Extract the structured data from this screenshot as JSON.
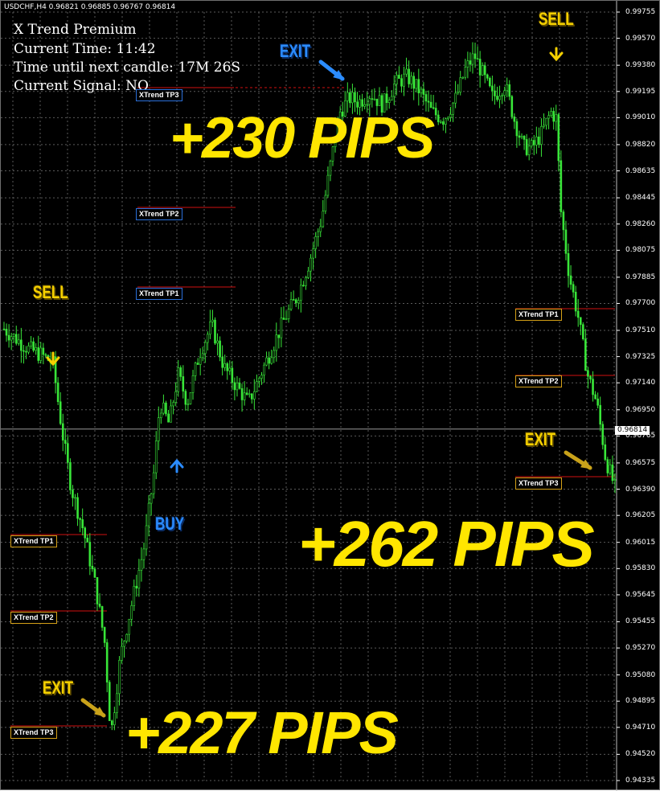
{
  "header": {
    "symbol_line": "USDCHF,H4  0.96821 0.96885 0.96767 0.96814"
  },
  "indicator_panel": {
    "title": "X Trend Premium",
    "current_time": "Current Time: 11:42",
    "next_candle": "Time until next candle: 17M 26S",
    "current_signal": "Current Signal:   NO"
  },
  "current_price_tag": "0.96814",
  "colors": {
    "background": "#000000",
    "grid": "#5a5a5a",
    "candles": "#39e639",
    "tp_line": "#d01010",
    "gold": "#f5d000",
    "blue": "#2b8cff"
  },
  "annotations": {
    "signals": [
      {
        "id": "sell-1",
        "label": "SELL",
        "color": "gold",
        "arrow": "down"
      },
      {
        "id": "buy-1",
        "label": "BUY",
        "color": "blue",
        "arrow": "up"
      },
      {
        "id": "exit-top",
        "label": "EXIT",
        "color": "blue",
        "arrow": "diagonal"
      },
      {
        "id": "sell-2",
        "label": "SELL",
        "color": "gold",
        "arrow": "down"
      },
      {
        "id": "exit-bottom-left",
        "label": "EXIT",
        "color": "gold",
        "arrow": "diagonal"
      },
      {
        "id": "exit-bottom-right",
        "label": "EXIT",
        "color": "gold",
        "arrow": "diagonal"
      }
    ],
    "take_profit_labels": [
      {
        "id": "tp3-top",
        "label": "XTrend TP3",
        "style": "blue"
      },
      {
        "id": "tp2-top",
        "label": "XTrend TP2",
        "style": "blue"
      },
      {
        "id": "tp1-top",
        "label": "XTrend TP1",
        "style": "blue"
      },
      {
        "id": "tp1-right",
        "label": "XTrend TP1",
        "style": "gold"
      },
      {
        "id": "tp2-right",
        "label": "XTrend TP2",
        "style": "gold"
      },
      {
        "id": "tp3-right",
        "label": "XTrend TP3",
        "style": "gold"
      },
      {
        "id": "tp1-left",
        "label": "XTrend TP1",
        "style": "gold"
      },
      {
        "id": "tp2-left",
        "label": "XTrend TP2",
        "style": "gold"
      },
      {
        "id": "tp3-left",
        "label": "XTrend TP3",
        "style": "gold"
      }
    ],
    "pips": [
      {
        "id": "pips-230",
        "label": "+230 PIPS"
      },
      {
        "id": "pips-262",
        "label": "+262 PIPS"
      },
      {
        "id": "pips-227",
        "label": "+227 PIPS"
      }
    ]
  },
  "chart_data": {
    "type": "candlestick",
    "symbol": "USDCHF",
    "timeframe": "H4",
    "ylim": [
      0.94335,
      0.99755
    ],
    "y_ticks": [
      "0.99755",
      "0.99570",
      "0.99380",
      "0.99195",
      "0.99010",
      "0.98820",
      "0.98635",
      "0.98445",
      "0.98260",
      "0.98075",
      "0.97885",
      "0.97700",
      "0.97510",
      "0.97325",
      "0.97140",
      "0.96950",
      "0.96765",
      "0.96575",
      "0.96390",
      "0.96205",
      "0.96015",
      "0.95830",
      "0.95645",
      "0.95455",
      "0.95270",
      "0.95080",
      "0.94895",
      "0.94710",
      "0.94520",
      "0.94335"
    ],
    "grid": true,
    "price_path": [
      [
        0,
        0.9752
      ],
      [
        0.02,
        0.9745
      ],
      [
        0.04,
        0.9738
      ],
      [
        0.06,
        0.9734
      ],
      [
        0.08,
        0.9728
      ],
      [
        0.095,
        0.968
      ],
      [
        0.11,
        0.964
      ],
      [
        0.13,
        0.961
      ],
      [
        0.15,
        0.957
      ],
      [
        0.165,
        0.953
      ],
      [
        0.175,
        0.9465
      ],
      [
        0.19,
        0.952
      ],
      [
        0.21,
        0.956
      ],
      [
        0.23,
        0.96
      ],
      [
        0.245,
        0.965
      ],
      [
        0.255,
        0.97
      ],
      [
        0.27,
        0.9685
      ],
      [
        0.285,
        0.972
      ],
      [
        0.3,
        0.97
      ],
      [
        0.32,
        0.9735
      ],
      [
        0.34,
        0.9755
      ],
      [
        0.36,
        0.9725
      ],
      [
        0.38,
        0.9712
      ],
      [
        0.4,
        0.97
      ],
      [
        0.42,
        0.972
      ],
      [
        0.44,
        0.974
      ],
      [
        0.46,
        0.976
      ],
      [
        0.48,
        0.9775
      ],
      [
        0.5,
        0.98
      ],
      [
        0.52,
        0.983
      ],
      [
        0.535,
        0.987
      ],
      [
        0.55,
        0.9905
      ],
      [
        0.565,
        0.9915
      ],
      [
        0.58,
        0.9912
      ],
      [
        0.6,
        0.9918
      ],
      [
        0.62,
        0.991
      ],
      [
        0.64,
        0.9925
      ],
      [
        0.66,
        0.993
      ],
      [
        0.68,
        0.992
      ],
      [
        0.7,
        0.9905
      ],
      [
        0.72,
        0.99
      ],
      [
        0.74,
        0.9915
      ],
      [
        0.755,
        0.9935
      ],
      [
        0.77,
        0.9945
      ],
      [
        0.785,
        0.993
      ],
      [
        0.8,
        0.9915
      ],
      [
        0.82,
        0.9925
      ],
      [
        0.835,
        0.99
      ],
      [
        0.85,
        0.988
      ],
      [
        0.865,
        0.988
      ],
      [
        0.88,
        0.989
      ],
      [
        0.895,
        0.9905
      ],
      [
        0.905,
        0.99
      ],
      [
        0.91,
        0.984
      ],
      [
        0.925,
        0.979
      ],
      [
        0.94,
        0.976
      ],
      [
        0.955,
        0.972
      ],
      [
        0.97,
        0.97
      ],
      [
        0.985,
        0.966
      ],
      [
        1.0,
        0.964
      ]
    ]
  }
}
